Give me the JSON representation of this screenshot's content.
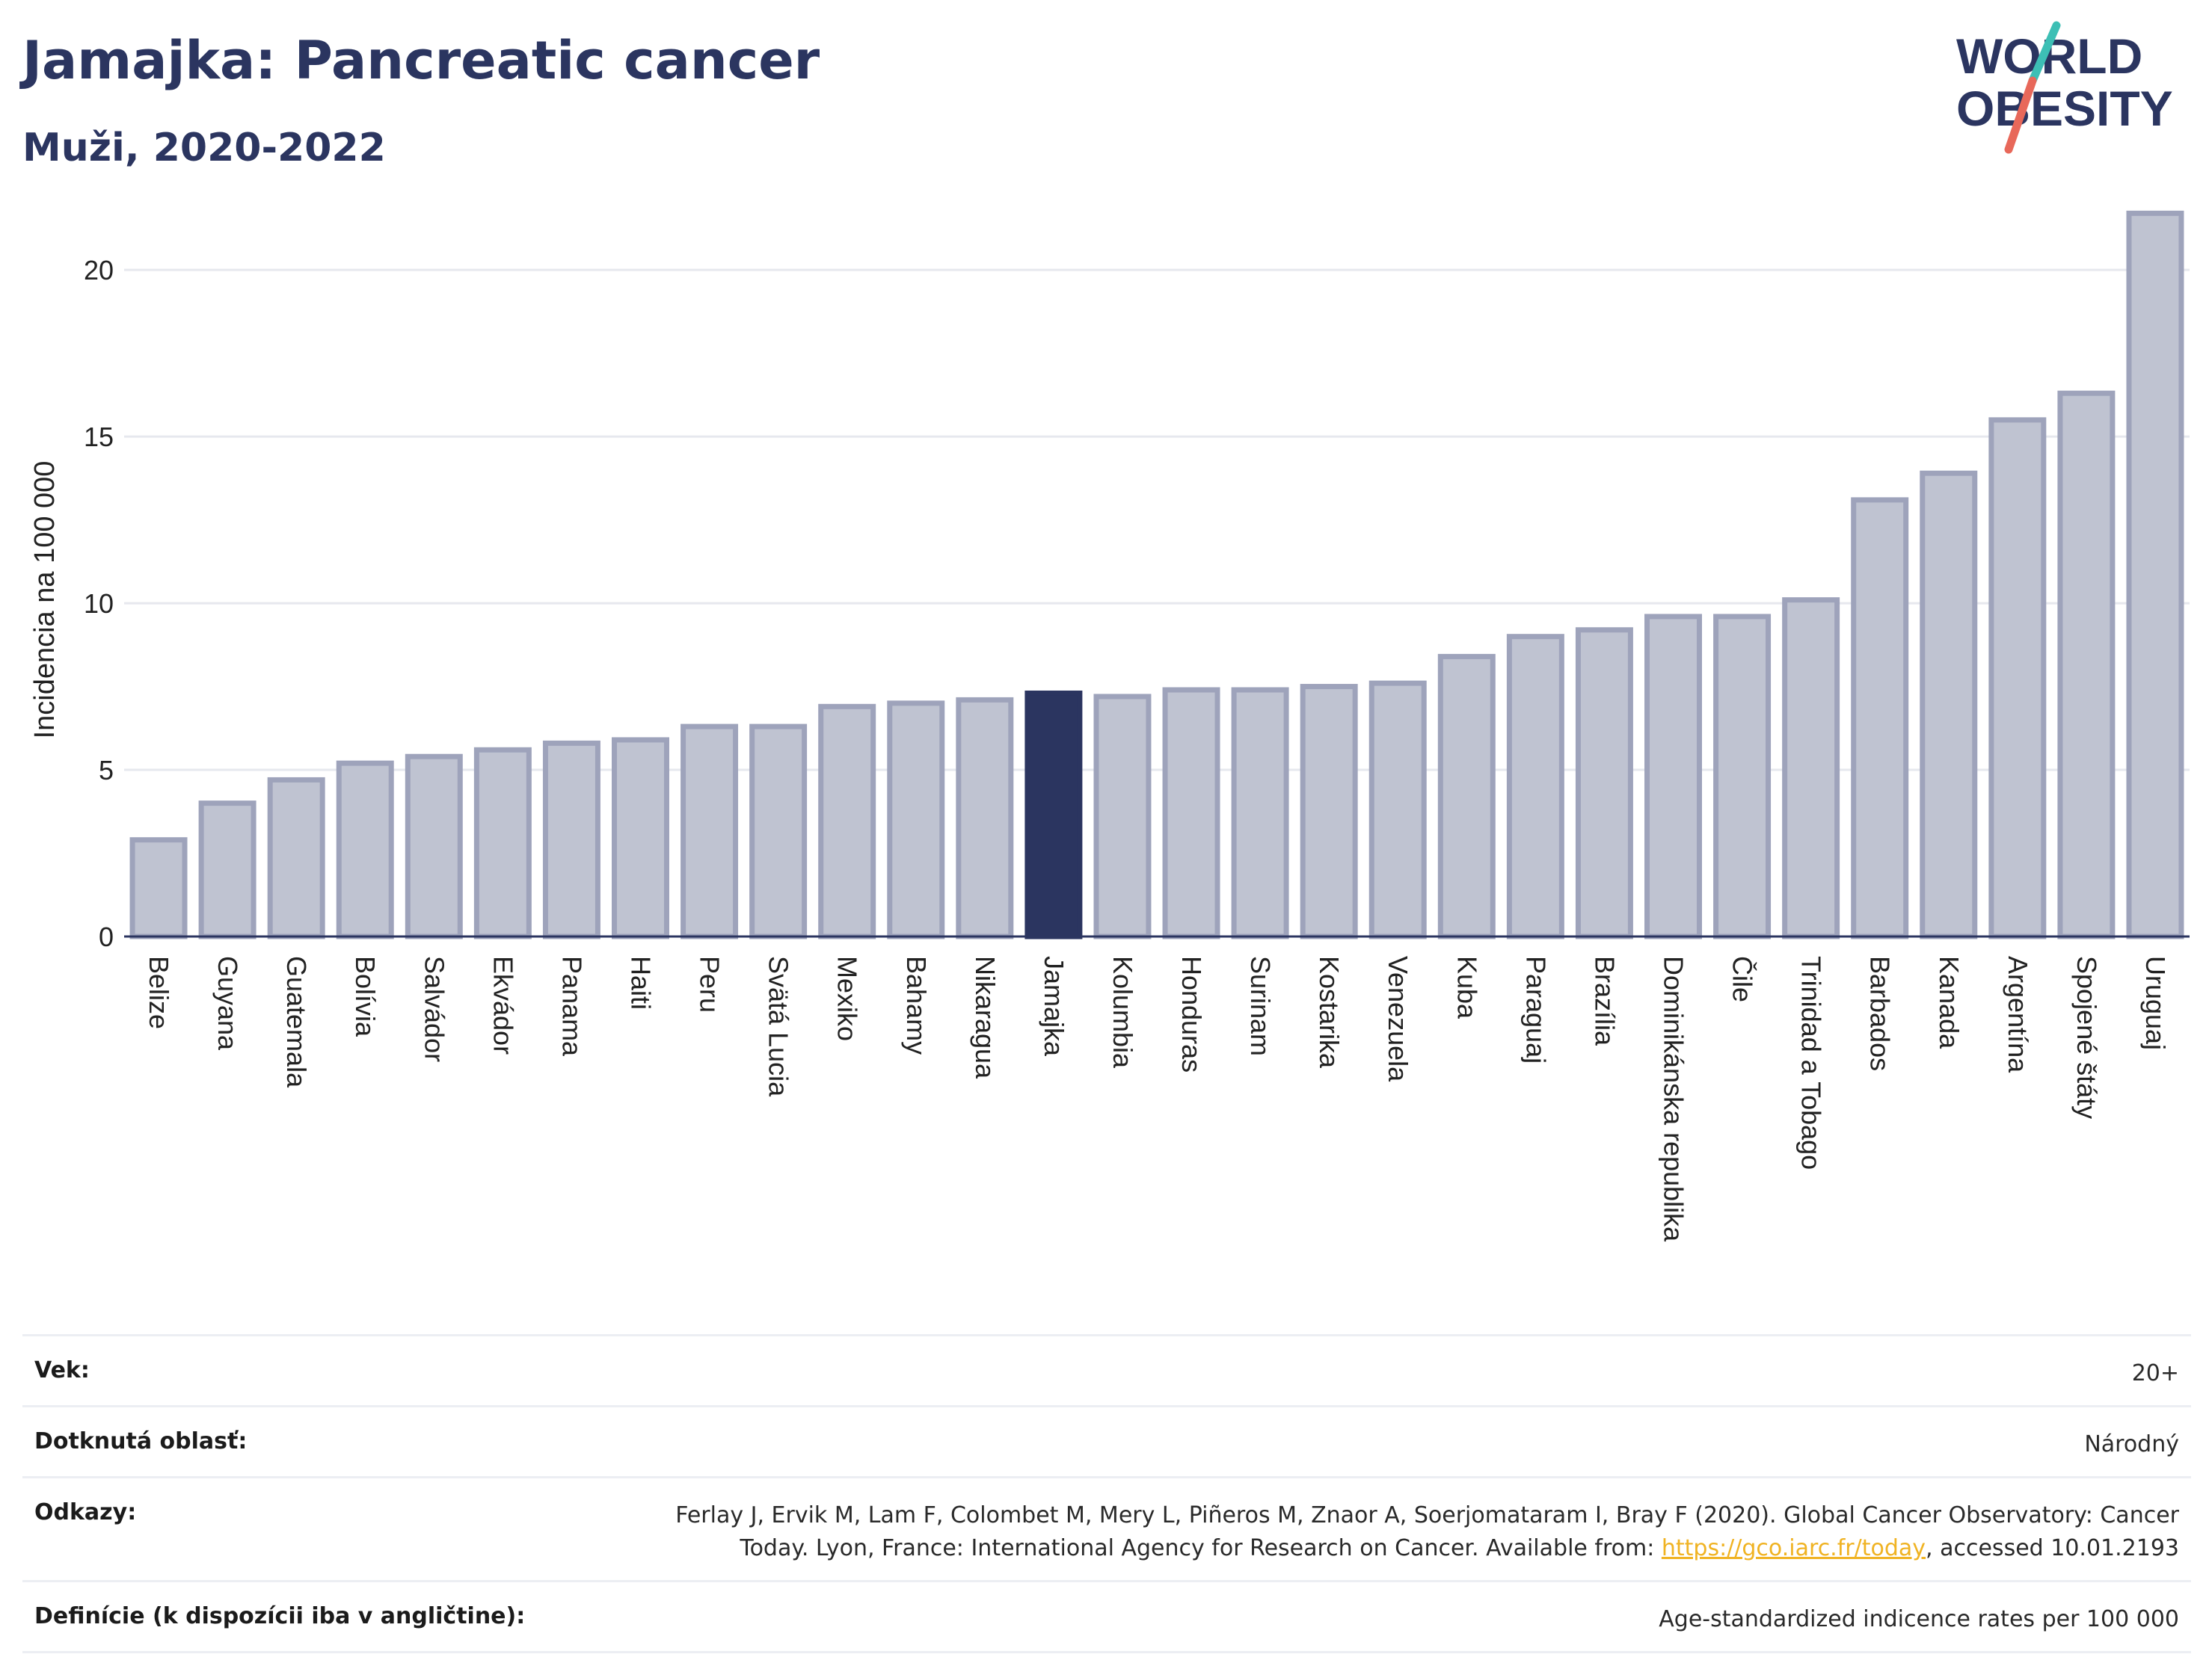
{
  "header": {
    "title": "Jamajka: Pancreatic cancer",
    "subtitle": "Muži, 2020-2022"
  },
  "logo": {
    "line1": "WORLD",
    "line2": "OBESITY",
    "colors": {
      "text": "#2b3560",
      "slash_top": "#3dbfb5",
      "slash_bottom": "#e8685a"
    }
  },
  "colors": {
    "bar": "#bfc3d1",
    "bar_stroke": "#9ea3bb",
    "highlight": "#2b3560",
    "grid": "#e6e8ee",
    "axis": "#2b3560"
  },
  "chart_data": {
    "type": "bar",
    "title": "Jamajka: Pancreatic cancer",
    "subtitle": "Muži, 2020-2022",
    "xlabel": "",
    "ylabel": "Incidencia na 100 000",
    "ylim": [
      0,
      22
    ],
    "yticks": [
      0,
      5,
      10,
      15,
      20
    ],
    "grid": true,
    "highlight": "Jamajka",
    "categories": [
      "Belize",
      "Guyana",
      "Guatemala",
      "Bolívia",
      "Salvádor",
      "Ekvádor",
      "Panama",
      "Haiti",
      "Peru",
      "Svätá Lucia",
      "Mexiko",
      "Bahamy",
      "Nikaragua",
      "Jamajka",
      "Kolumbia",
      "Honduras",
      "Surinam",
      "Kostarika",
      "Venezuela",
      "Kuba",
      "Paraguaj",
      "Brazília",
      "Dominikánska republika",
      "Čile",
      "Trinidad a Tobago",
      "Barbados",
      "Kanada",
      "Argentína",
      "Spojené štáty",
      "Uruguaj"
    ],
    "values": [
      2.9,
      4.0,
      4.7,
      5.2,
      5.4,
      5.6,
      5.8,
      5.9,
      6.3,
      6.3,
      6.9,
      7.0,
      7.1,
      7.3,
      7.2,
      7.4,
      7.4,
      7.5,
      7.6,
      8.4,
      9.0,
      9.2,
      9.6,
      9.6,
      10.1,
      13.1,
      13.9,
      15.5,
      16.3,
      21.7
    ]
  },
  "info": {
    "age_label": "Vek:",
    "age_value": "20+",
    "area_label": "Dotknutá oblasť:",
    "area_value": "Národný",
    "refs_label": "Odkazy:",
    "refs_text_1": "Ferlay J, Ervik M, Lam F, Colombet M, Mery L, Piñeros M, Znaor A, Soerjomataram I, Bray F (2020). Global Cancer Observatory: Cancer Today. Lyon, France: International Agency for Research on Cancer. Available from: ",
    "refs_link": "https://gco.iarc.fr/today",
    "refs_text_2": ", accessed 10.01.2193",
    "defs_label": "Definície (k dispozícii iba v angličtine):",
    "defs_value": "Age-standardized indicence rates per 100 000"
  }
}
